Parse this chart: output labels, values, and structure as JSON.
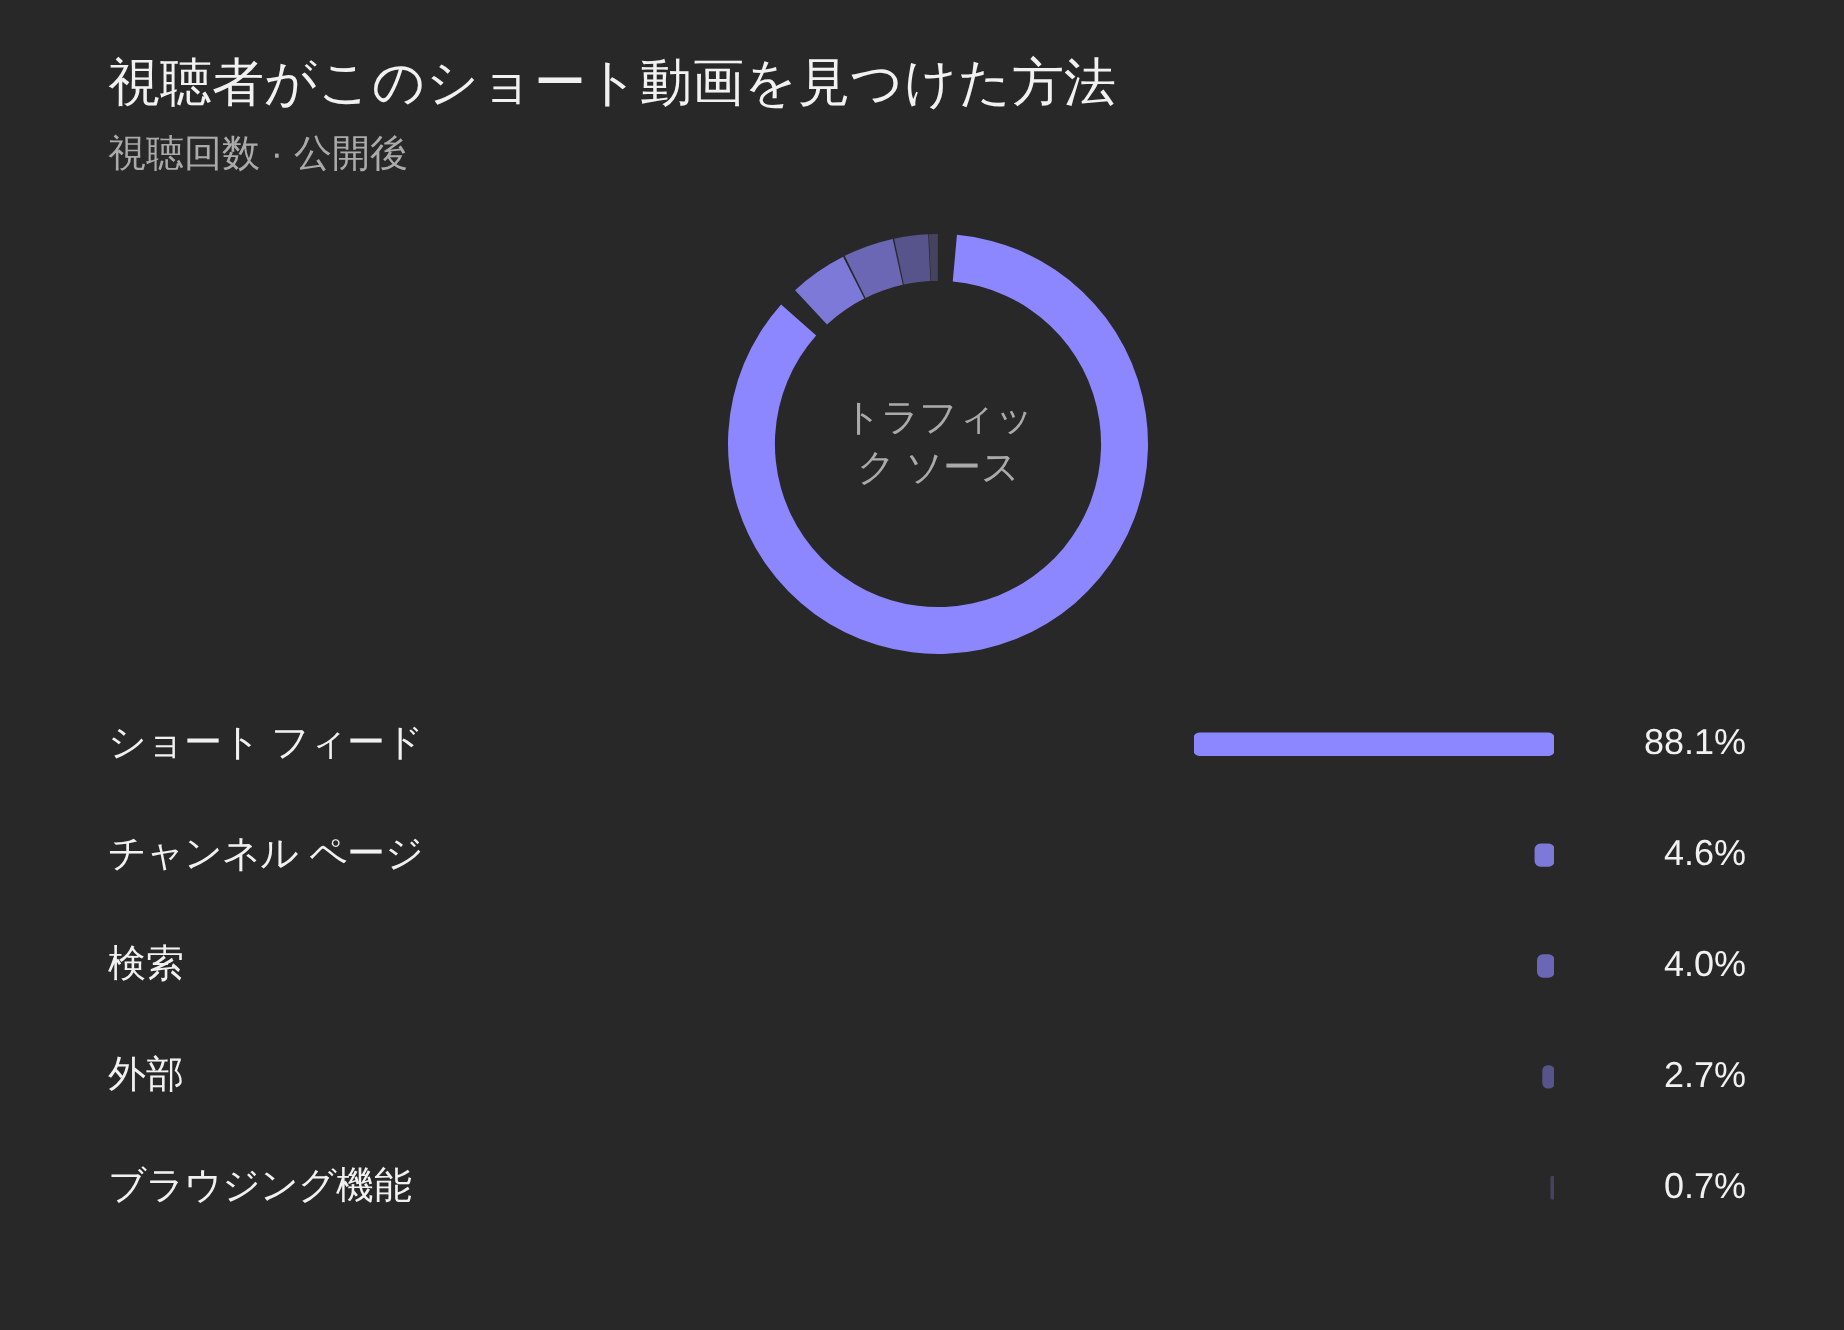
{
  "chart_data": [
    {
      "type": "donut",
      "title": "視聴者がこのショート動画を見つけた方法",
      "subtitle": "視聴回数 · 公開後",
      "categories": [
        null,
        null,
        null,
        null,
        null
      ],
      "values": [
        88.1,
        4.6,
        4.0,
        2.7,
        0.7
      ],
      "colors": [
        "#8c87ff",
        "#7d79d8",
        "#6b67b4",
        "#57548b",
        "#45435f"
      ],
      "annotations": [
        "トラフィック ソース"
      ]
    },
    {
      "type": "bar",
      "orientation": "horizontal",
      "categories": [
        "ショート フィード",
        "チャンネル ページ",
        "検索",
        "外部",
        "ブラウジング機能"
      ],
      "values": [
        88.1,
        4.6,
        4.0,
        2.7,
        0.7
      ],
      "colors": [
        "#8c87ff",
        "#7d79d8",
        "#6b67b4",
        "#57548b",
        "#45435f"
      ],
      "xlim": [
        88.1,
        0
      ],
      "value_labels": [
        "88.1%",
        "4.6%",
        "4.0%",
        "2.7%",
        "0.7%"
      ],
      "tick_labels": "y"
    }
  ]
}
